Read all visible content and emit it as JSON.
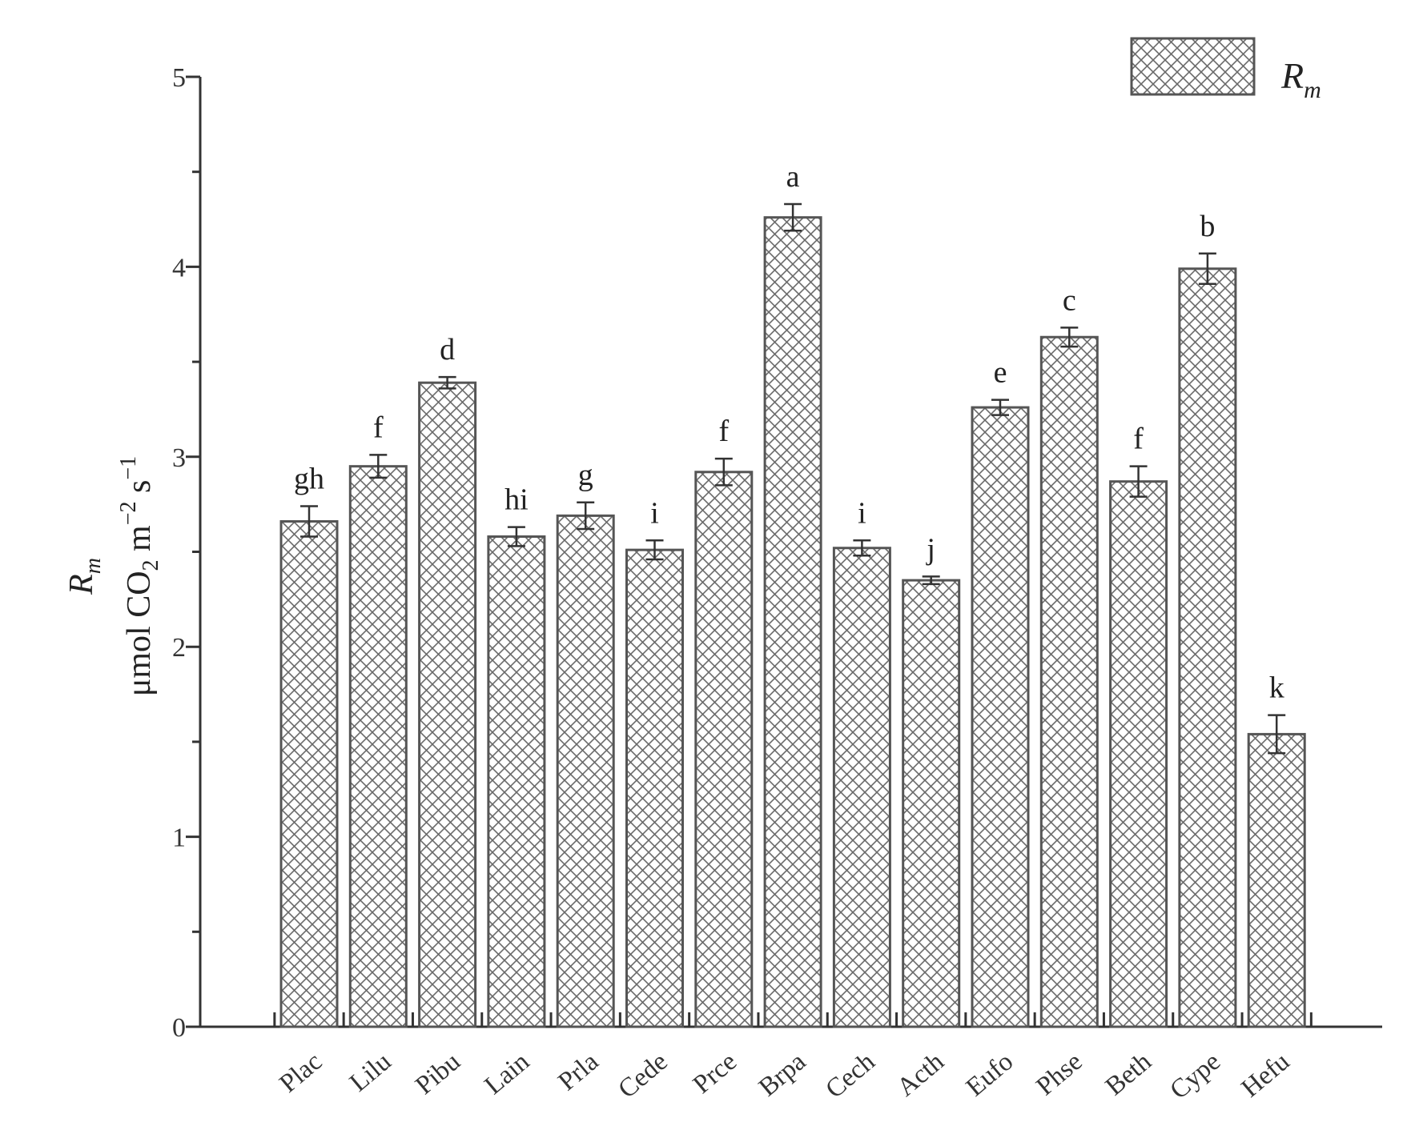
{
  "chart_data": {
    "type": "bar",
    "title": "",
    "ylim": [
      0,
      5
    ],
    "yticks": [
      "0",
      "1",
      "2",
      "3",
      "4",
      "5"
    ],
    "ylabel": {
      "line1": "R",
      "line1_sub": "m",
      "line2_prefix": "μmol CO",
      "line2_sub": "2",
      "line2_mid": " m",
      "line2_sup1": "−2",
      "line2_mid2": " s",
      "line2_sup2": "−1"
    },
    "legend": {
      "label": "R",
      "label_sub": "m",
      "position": "top-right"
    },
    "grid": false,
    "pattern": "crosshatch",
    "bar_color": "#555555",
    "categories": [
      "Plac",
      "Lilu",
      "Pibu",
      "Lain",
      "Prla",
      "Cede",
      "Prce",
      "Brpa",
      "Cech",
      "Acth",
      "Eufo",
      "Phse",
      "Beth",
      "Cype",
      "Hefu"
    ],
    "series": [
      {
        "name": "Rm",
        "values": [
          2.66,
          2.95,
          3.39,
          2.58,
          2.69,
          2.51,
          2.92,
          4.26,
          2.52,
          2.35,
          3.26,
          3.63,
          2.87,
          3.99,
          1.54
        ],
        "errors": [
          0.08,
          0.06,
          0.03,
          0.05,
          0.07,
          0.05,
          0.07,
          0.07,
          0.04,
          0.02,
          0.04,
          0.05,
          0.08,
          0.08,
          0.1
        ],
        "significance": [
          "gh",
          "f",
          "d",
          "hi",
          "g",
          "i",
          "f",
          "a",
          "i",
          "j",
          "e",
          "c",
          "f",
          "b",
          "k"
        ]
      }
    ]
  }
}
